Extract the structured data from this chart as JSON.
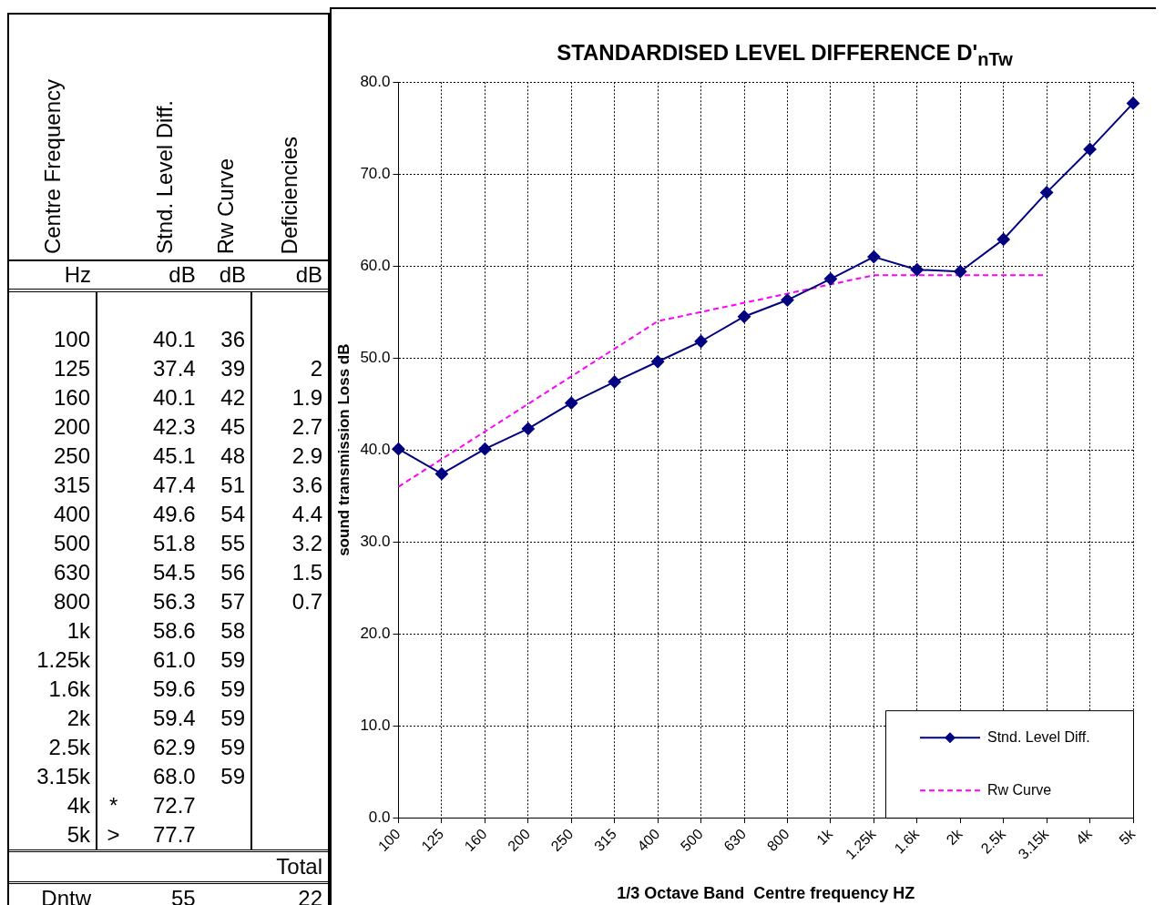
{
  "chart_data": [
    {
      "type": "other",
      "categories": [
        "Centre Frequency",
        null,
        "Stnd. Level Diff.",
        "Rw Curve",
        "Deficiencies"
      ],
      "cell_labels": [
        [
          "Hz",
          null,
          "dB",
          "dB",
          "dB"
        ],
        [
          "100",
          null,
          "40.1",
          "36",
          null
        ],
        [
          "125",
          null,
          "37.4",
          "39",
          "2"
        ],
        [
          "160",
          null,
          "40.1",
          "42",
          "1.9"
        ],
        [
          "200",
          null,
          "42.3",
          "45",
          "2.7"
        ],
        [
          "250",
          null,
          "45.1",
          "48",
          "2.9"
        ],
        [
          "315",
          null,
          "47.4",
          "51",
          "3.6"
        ],
        [
          "400",
          null,
          "49.6",
          "54",
          "4.4"
        ],
        [
          "500",
          null,
          "51.8",
          "55",
          "3.2"
        ],
        [
          "630",
          null,
          "54.5",
          "56",
          "1.5"
        ],
        [
          "800",
          null,
          "56.3",
          "57",
          "0.7"
        ],
        [
          "1k",
          null,
          "58.6",
          "58",
          null
        ],
        [
          "1.25k",
          null,
          "61.0",
          "59",
          null
        ],
        [
          "1.6k",
          null,
          "59.6",
          "59",
          null
        ],
        [
          "2k",
          null,
          "59.4",
          "59",
          null
        ],
        [
          "2.5k",
          null,
          "62.9",
          "59",
          null
        ],
        [
          "3.15k",
          null,
          "68.0",
          "59",
          null
        ],
        [
          "4k",
          "*",
          "72.7",
          null,
          null
        ],
        [
          "5k",
          ">",
          "77.7",
          null,
          null
        ],
        [
          null,
          null,
          null,
          null,
          "Total"
        ],
        [
          "Dntw",
          null,
          "55",
          null,
          "22"
        ]
      ]
    },
    {
      "type": "line",
      "title": "STANDARDISED LEVEL DIFFERENCE D'$_{nTw}$",
      "xlabel": "1/3 Octave Band  Centre frequency HZ",
      "ylabel": "sound transmission Loss dB",
      "categories": [
        "100",
        "125",
        "160",
        "200",
        "250",
        "315",
        "400",
        "500",
        "630",
        "800",
        "1k",
        "1.25k",
        "1.6k",
        "2k",
        "2.5k",
        "3.15k",
        "4k",
        "5k"
      ],
      "series": [
        {
          "name": "Stnd. Level Diff.",
          "color": "#000080",
          "marker": "diamond",
          "line_style": "solid",
          "values": [
            40.1,
            37.4,
            40.1,
            42.3,
            45.1,
            47.4,
            49.6,
            51.8,
            54.5,
            56.3,
            58.6,
            61.0,
            59.6,
            59.4,
            62.9,
            68.0,
            72.7,
            77.7
          ]
        },
        {
          "name": "Rw Curve",
          "color": "#ff00ff",
          "marker": "none",
          "line_style": "dashed",
          "values": [
            36,
            39,
            42,
            45,
            48,
            51,
            54,
            55,
            56,
            57,
            58,
            59,
            59,
            59,
            59,
            59,
            null,
            null
          ]
        }
      ],
      "ylim": [
        0,
        80
      ],
      "yticks": [
        {
          "value": 0,
          "label": "0.0"
        },
        {
          "value": 10,
          "label": "10.0"
        },
        {
          "value": 20,
          "label": "20.0"
        },
        {
          "value": 30,
          "label": "30.0"
        },
        {
          "value": 40,
          "label": "40.0"
        },
        {
          "value": 50,
          "label": "50.0"
        },
        {
          "value": 60,
          "label": "60.0"
        },
        {
          "value": 70,
          "label": "70.0"
        },
        {
          "value": 80,
          "label": "80.0"
        }
      ],
      "grid": true,
      "legend": "bottom right"
    }
  ]
}
